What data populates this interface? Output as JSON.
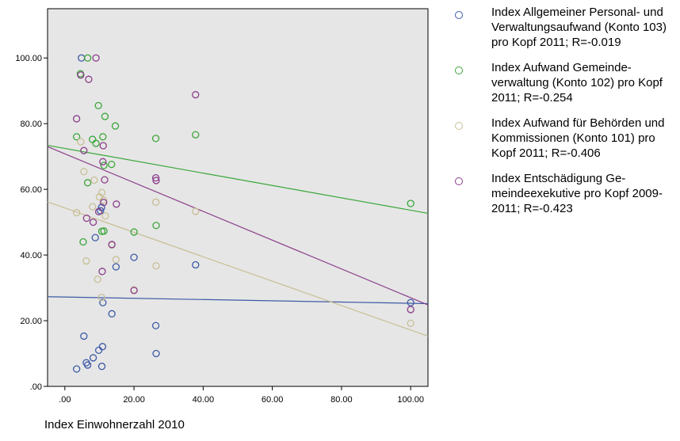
{
  "chart_data": {
    "type": "scatter",
    "title": "",
    "xlabel": "Index Einwohnerzahl 2010",
    "ylabel": "",
    "xlim": [
      -5,
      105
    ],
    "ylim": [
      0,
      115
    ],
    "x_ticks": [
      0,
      20,
      40,
      60,
      80,
      100
    ],
    "x_tick_labels": [
      ".00",
      "20.00",
      "40.00",
      "60.00",
      "80.00",
      "100.00"
    ],
    "y_ticks": [
      0,
      20,
      40,
      60,
      80,
      100
    ],
    "y_tick_labels": [
      ".00",
      "20.00",
      "40.00",
      "60.00",
      "80.00",
      "100.00"
    ],
    "grid": false,
    "plot_background": "#e6e6e6",
    "legend_position": "right",
    "series": [
      {
        "name": "Index Allgemeiner Personal- und Verwaltungsaufwand (Konto 103) pro Kopf 2011; R=-0.019",
        "color": "#3d5aa6",
        "points": [
          [
            4.8,
            100
          ],
          [
            3.4,
            5.3
          ],
          [
            5.5,
            15.3
          ],
          [
            6.2,
            7.2
          ],
          [
            6.6,
            6.5
          ],
          [
            8.2,
            8.7
          ],
          [
            8.8,
            45.3
          ],
          [
            9.8,
            11.0
          ],
          [
            10.3,
            53.5
          ],
          [
            10.6,
            54.5
          ],
          [
            10.7,
            6.1
          ],
          [
            10.9,
            12.1
          ],
          [
            11.0,
            25.5
          ],
          [
            13.6,
            22.1
          ],
          [
            14.8,
            36.4
          ],
          [
            20.0,
            39.3
          ],
          [
            26.3,
            18.5
          ],
          [
            26.4,
            10.0
          ],
          [
            37.8,
            37.0
          ],
          [
            100,
            25.5
          ]
        ],
        "fit_line": [
          [
            -5,
            27.3
          ],
          [
            105,
            25.2
          ]
        ]
      },
      {
        "name": "Index Aufwand Gemeinde-verwaltung (Konto 102) pro Kopf 2011; R=-0.254",
        "color": "#3aa63a",
        "points": [
          [
            4.5,
            95.2
          ],
          [
            6.6,
            100
          ],
          [
            3.4,
            76.0
          ],
          [
            5.3,
            44.0
          ],
          [
            6.6,
            62.0
          ],
          [
            8.0,
            75.2
          ],
          [
            9.0,
            74.0
          ],
          [
            9.7,
            85.5
          ],
          [
            10.7,
            47.2
          ],
          [
            11.0,
            76.0
          ],
          [
            11.3,
            67.3
          ],
          [
            11.3,
            47.3
          ],
          [
            11.6,
            82.2
          ],
          [
            13.5,
            67.6
          ],
          [
            14.6,
            79.3
          ],
          [
            20.0,
            47.0
          ],
          [
            26.3,
            75.5
          ],
          [
            26.4,
            49.0
          ],
          [
            37.8,
            76.6
          ],
          [
            100,
            55.7
          ]
        ],
        "fit_line": [
          [
            -5,
            73.4
          ],
          [
            105,
            52.7
          ]
        ]
      },
      {
        "name": "Index Aufwand für Behörden und Kommissionen (Konto 101) pro Kopf 2011; R=-0.406",
        "color": "#c8bf96",
        "points": [
          [
            3.4,
            52.9
          ],
          [
            4.6,
            74.5
          ],
          [
            5.5,
            65.4
          ],
          [
            6.2,
            38.2
          ],
          [
            8.0,
            54.7
          ],
          [
            8.5,
            62.8
          ],
          [
            9.5,
            32.6
          ],
          [
            10.0,
            57.7
          ],
          [
            10.6,
            27.1
          ],
          [
            10.7,
            59.0
          ],
          [
            11.2,
            56.7
          ],
          [
            11.7,
            51.9
          ],
          [
            13.6,
            43.0
          ],
          [
            14.8,
            38.6
          ],
          [
            20.0,
            29.4
          ],
          [
            26.3,
            56.1
          ],
          [
            26.4,
            36.7
          ],
          [
            37.8,
            53.3
          ],
          [
            100,
            19.2
          ]
        ],
        "fit_line": [
          [
            -5,
            56.2
          ],
          [
            105,
            15.3
          ]
        ]
      },
      {
        "name": "Index Entschädigung Ge-meindeexekutive pro Kopf 2009-2011; R=-0.423",
        "color": "#8a3e8a",
        "points": [
          [
            9.0,
            100
          ],
          [
            4.6,
            94.8
          ],
          [
            6.9,
            93.5
          ],
          [
            3.4,
            81.5
          ],
          [
            5.5,
            71.8
          ],
          [
            6.3,
            51.2
          ],
          [
            8.2,
            50.0
          ],
          [
            9.8,
            53.2
          ],
          [
            10.8,
            35.0
          ],
          [
            11.0,
            68.4
          ],
          [
            11.1,
            73.3
          ],
          [
            11.2,
            56.0
          ],
          [
            11.5,
            62.9
          ],
          [
            13.6,
            43.2
          ],
          [
            14.9,
            55.5
          ],
          [
            20.0,
            29.2
          ],
          [
            26.3,
            63.5
          ],
          [
            26.4,
            62.7
          ],
          [
            37.8,
            88.8
          ],
          [
            100,
            23.4
          ]
        ],
        "fit_line": [
          [
            -5,
            73.0
          ],
          [
            105,
            24.8
          ]
        ]
      }
    ]
  }
}
